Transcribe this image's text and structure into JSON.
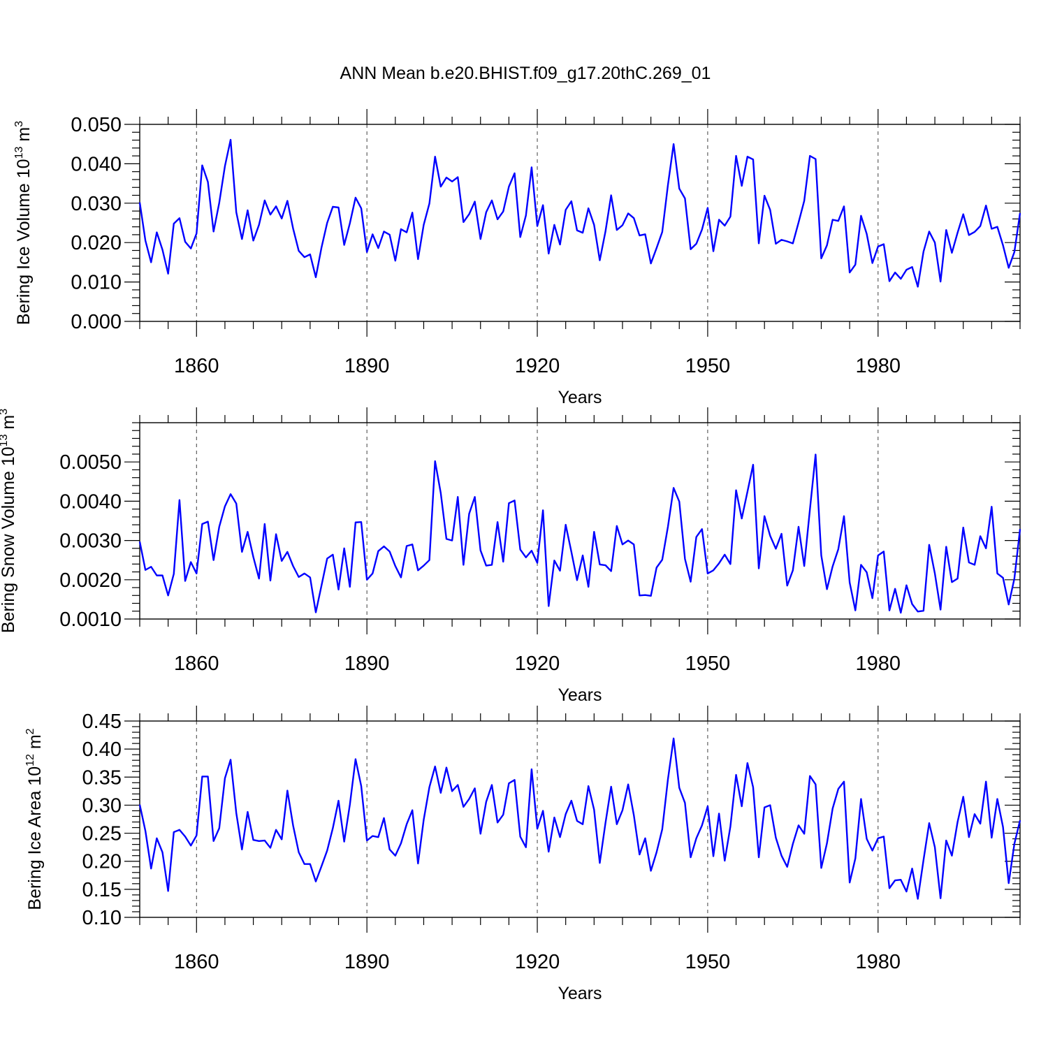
{
  "title": "ANN Mean b.e20.BHIST.f09_g17.20thC.269_01",
  "colors": {
    "line": "#0000ff",
    "axis": "#000000",
    "background": "#ffffff"
  },
  "chart_data": [
    {
      "type": "line",
      "title": "ANN Mean b.e20.BHIST.f09_g17.20thC.269_01",
      "xlabel": "Years",
      "ylabel": {
        "text": "Bering Ice Volume 10",
        "exponent": "13",
        "unit": " m",
        "unit_exp": "3"
      },
      "xlim": [
        1850,
        2005
      ],
      "ylim": [
        0.0,
        0.05
      ],
      "x_ticks": [
        1860,
        1890,
        1920,
        1950,
        1980
      ],
      "y_ticks": [
        "0.000",
        "0.010",
        "0.020",
        "0.030",
        "0.040",
        "0.050"
      ],
      "y_minor_step": 0.002,
      "grid": "vertical dashed at major x ticks",
      "series": [
        {
          "name": "Bering Ice Volume",
          "color": "#0000ff",
          "x_start": 1850,
          "x_step": 1,
          "values": [
            0.0302,
            0.0205,
            0.015,
            0.0226,
            0.0182,
            0.0121,
            0.0248,
            0.0262,
            0.0202,
            0.0185,
            0.0223,
            0.0396,
            0.0354,
            0.0228,
            0.0301,
            0.0394,
            0.0461,
            0.0277,
            0.0209,
            0.0282,
            0.0205,
            0.0245,
            0.0307,
            0.0271,
            0.0292,
            0.0261,
            0.0306,
            0.0236,
            0.0179,
            0.0163,
            0.017,
            0.0112,
            0.0187,
            0.025,
            0.0291,
            0.0289,
            0.0194,
            0.0249,
            0.0314,
            0.0287,
            0.0176,
            0.0221,
            0.0186,
            0.0228,
            0.022,
            0.0154,
            0.0234,
            0.0226,
            0.0276,
            0.0158,
            0.0245,
            0.0299,
            0.0418,
            0.0342,
            0.0365,
            0.0355,
            0.0366,
            0.0252,
            0.0272,
            0.0304,
            0.0209,
            0.0277,
            0.0307,
            0.0259,
            0.0279,
            0.0342,
            0.0376,
            0.0214,
            0.0269,
            0.0391,
            0.0242,
            0.0295,
            0.0172,
            0.0245,
            0.0195,
            0.0283,
            0.0305,
            0.0231,
            0.0225,
            0.0287,
            0.0245,
            0.0155,
            0.0228,
            0.032,
            0.0232,
            0.0244,
            0.0274,
            0.0262,
            0.0218,
            0.0221,
            0.0147,
            0.0186,
            0.0227,
            0.0346,
            0.045,
            0.0337,
            0.0312,
            0.0183,
            0.0197,
            0.0233,
            0.0288,
            0.0178,
            0.0258,
            0.0243,
            0.0266,
            0.042,
            0.0344,
            0.0418,
            0.0411,
            0.0198,
            0.0319,
            0.0283,
            0.0197,
            0.0207,
            0.0203,
            0.0198,
            0.0251,
            0.0306,
            0.042,
            0.0412,
            0.016,
            0.0193,
            0.0258,
            0.0255,
            0.0292,
            0.0124,
            0.0144,
            0.0268,
            0.0222,
            0.0148,
            0.019,
            0.0196,
            0.0102,
            0.0124,
            0.0108,
            0.0131,
            0.0138,
            0.0088,
            0.0177,
            0.0228,
            0.02,
            0.0101,
            0.0232,
            0.0174,
            0.0225,
            0.0272,
            0.0219,
            0.0227,
            0.0242,
            0.0294,
            0.0235,
            0.024,
            0.0193,
            0.0136,
            0.0176,
            0.0275
          ]
        }
      ]
    },
    {
      "type": "line",
      "xlabel": "Years",
      "ylabel": {
        "text": "Bering Snow Volume 10",
        "exponent": "13",
        "unit": " m",
        "unit_exp": "3"
      },
      "xlim": [
        1850,
        2005
      ],
      "ylim": [
        0.001,
        0.006
      ],
      "x_ticks": [
        1860,
        1890,
        1920,
        1950,
        1980
      ],
      "y_ticks": [
        "0.0010",
        "0.0020",
        "0.0030",
        "0.0040",
        "0.0050"
      ],
      "y_minor_step": 0.0002,
      "grid": "vertical dashed at major x ticks",
      "series": [
        {
          "name": "Bering Snow Volume",
          "color": "#0000ff",
          "x_start": 1850,
          "x_step": 1,
          "values": [
            0.00297,
            0.00225,
            0.00233,
            0.00211,
            0.00211,
            0.0016,
            0.00215,
            0.00403,
            0.00197,
            0.00245,
            0.00216,
            0.00342,
            0.00348,
            0.0025,
            0.00335,
            0.00387,
            0.00418,
            0.00394,
            0.00271,
            0.00322,
            0.00258,
            0.00203,
            0.00342,
            0.00198,
            0.00316,
            0.00248,
            0.00271,
            0.00235,
            0.00207,
            0.00216,
            0.00206,
            0.00117,
            0.00185,
            0.00254,
            0.00264,
            0.00175,
            0.0028,
            0.00182,
            0.00346,
            0.00347,
            0.002,
            0.00216,
            0.00273,
            0.00285,
            0.00272,
            0.00235,
            0.00206,
            0.00286,
            0.0029,
            0.00224,
            0.00236,
            0.0025,
            0.00502,
            0.00421,
            0.00304,
            0.003,
            0.00411,
            0.00238,
            0.00368,
            0.00411,
            0.00275,
            0.00236,
            0.00238,
            0.00347,
            0.00246,
            0.00395,
            0.00402,
            0.00277,
            0.00257,
            0.00274,
            0.00243,
            0.00377,
            0.00133,
            0.00249,
            0.00223,
            0.0034,
            0.00271,
            0.00199,
            0.00262,
            0.00182,
            0.00322,
            0.00239,
            0.00237,
            0.00222,
            0.00337,
            0.0029,
            0.003,
            0.0029,
            0.0016,
            0.00161,
            0.00159,
            0.00231,
            0.00251,
            0.00335,
            0.00434,
            0.00399,
            0.00253,
            0.00195,
            0.00309,
            0.00329,
            0.00216,
            0.00224,
            0.00242,
            0.00264,
            0.0024,
            0.00428,
            0.00356,
            0.00424,
            0.00493,
            0.00229,
            0.00362,
            0.00312,
            0.00279,
            0.00317,
            0.00185,
            0.00224,
            0.00335,
            0.00235,
            0.00379,
            0.00519,
            0.00262,
            0.00176,
            0.00234,
            0.00278,
            0.00362,
            0.00193,
            0.00122,
            0.00238,
            0.00219,
            0.00153,
            0.00262,
            0.00272,
            0.00122,
            0.00177,
            0.00116,
            0.00186,
            0.00138,
            0.00119,
            0.00121,
            0.00289,
            0.00216,
            0.00124,
            0.00284,
            0.00194,
            0.00203,
            0.00333,
            0.00244,
            0.00238,
            0.00311,
            0.0028,
            0.00386,
            0.00216,
            0.00205,
            0.00137,
            0.00203,
            0.00329
          ]
        }
      ]
    },
    {
      "type": "line",
      "xlabel": "Years",
      "ylabel": {
        "text": "Bering Ice Area 10",
        "exponent": "12",
        "unit": " m",
        "unit_exp": "2"
      },
      "xlim": [
        1850,
        2005
      ],
      "ylim": [
        0.1,
        0.45
      ],
      "x_ticks": [
        1860,
        1890,
        1920,
        1950,
        1980
      ],
      "y_ticks": [
        "0.10",
        "0.15",
        "0.20",
        "0.25",
        "0.30",
        "0.35",
        "0.40",
        "0.45"
      ],
      "y_minor_step": 0.01,
      "grid": "vertical dashed at major x ticks",
      "series": [
        {
          "name": "Bering Ice Area",
          "color": "#0000ff",
          "x_start": 1850,
          "x_step": 1,
          "values": [
            0.301,
            0.254,
            0.187,
            0.241,
            0.216,
            0.147,
            0.252,
            0.256,
            0.244,
            0.228,
            0.246,
            0.351,
            0.351,
            0.236,
            0.259,
            0.348,
            0.381,
            0.286,
            0.221,
            0.288,
            0.238,
            0.236,
            0.237,
            0.224,
            0.256,
            0.239,
            0.326,
            0.264,
            0.216,
            0.195,
            0.195,
            0.164,
            0.191,
            0.219,
            0.259,
            0.308,
            0.235,
            0.301,
            0.382,
            0.334,
            0.237,
            0.245,
            0.243,
            0.277,
            0.221,
            0.21,
            0.232,
            0.266,
            0.291,
            0.196,
            0.274,
            0.332,
            0.369,
            0.322,
            0.367,
            0.325,
            0.336,
            0.297,
            0.311,
            0.33,
            0.249,
            0.306,
            0.336,
            0.269,
            0.283,
            0.339,
            0.345,
            0.244,
            0.225,
            0.364,
            0.258,
            0.29,
            0.217,
            0.278,
            0.243,
            0.284,
            0.308,
            0.272,
            0.266,
            0.334,
            0.292,
            0.197,
            0.268,
            0.333,
            0.266,
            0.291,
            0.337,
            0.282,
            0.212,
            0.241,
            0.183,
            0.216,
            0.257,
            0.346,
            0.419,
            0.331,
            0.304,
            0.207,
            0.241,
            0.264,
            0.298,
            0.209,
            0.285,
            0.201,
            0.262,
            0.354,
            0.298,
            0.375,
            0.332,
            0.207,
            0.296,
            0.3,
            0.242,
            0.21,
            0.19,
            0.231,
            0.264,
            0.249,
            0.352,
            0.337,
            0.188,
            0.232,
            0.294,
            0.329,
            0.342,
            0.162,
            0.205,
            0.311,
            0.24,
            0.219,
            0.241,
            0.244,
            0.152,
            0.166,
            0.167,
            0.146,
            0.187,
            0.133,
            0.202,
            0.268,
            0.225,
            0.134,
            0.237,
            0.21,
            0.27,
            0.315,
            0.243,
            0.284,
            0.267,
            0.342,
            0.242,
            0.311,
            0.261,
            0.161,
            0.231,
            0.273
          ]
        }
      ]
    }
  ]
}
